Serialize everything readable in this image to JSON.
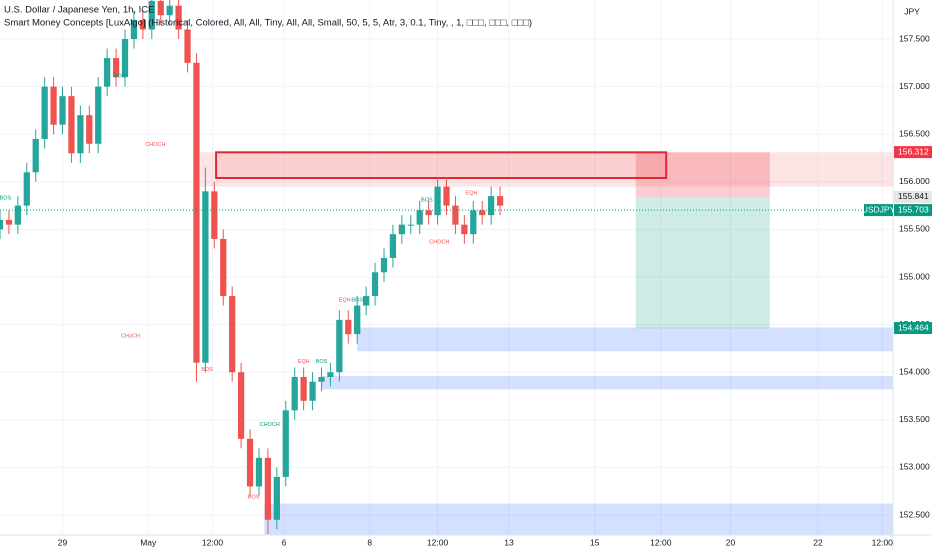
{
  "header": {
    "title": "U.S. Dollar / Japanese Yen, 1h, ICE",
    "indicator": "Smart Money Concepts [LuxAlgo] (Historical, Colored, All, All, Tiny, All, All, Small, 50, 5, 5, Atr, 3, 0.1, Tiny, , 1, □□□, □□□, □□□)",
    "currency": "JPY"
  },
  "chart_data": {
    "type": "candlestick",
    "up_color": "#26a69a",
    "down_color": "#ef5350",
    "x": [
      0,
      5,
      10,
      15,
      20,
      25,
      30,
      35,
      40,
      45,
      50,
      55,
      60,
      65,
      70,
      75,
      80,
      85,
      90,
      95,
      100,
      105,
      110,
      115,
      120,
      125,
      130,
      135,
      140,
      145,
      150,
      155,
      160,
      165,
      170,
      175,
      180,
      185,
      190,
      195,
      200,
      205,
      210,
      215,
      220,
      225,
      230,
      235,
      240,
      245,
      250,
      255,
      260,
      265,
      270,
      275,
      280
    ],
    "open": [
      155.5,
      155.6,
      155.55,
      155.75,
      156.1,
      156.45,
      157.0,
      156.6,
      156.9,
      156.3,
      156.7,
      156.4,
      157.0,
      157.3,
      157.1,
      157.5,
      157.7,
      157.6,
      157.9,
      157.75,
      157.85,
      157.6,
      157.25,
      154.1,
      155.9,
      155.4,
      154.8,
      154.0,
      153.3,
      152.8,
      153.1,
      152.45,
      152.9,
      153.6,
      153.95,
      153.7,
      153.9,
      153.95,
      154.0,
      154.55,
      154.4,
      154.7,
      154.8,
      155.05,
      155.2,
      155.45,
      155.55,
      155.55,
      155.7,
      155.65,
      155.95,
      155.75,
      155.55,
      155.45,
      155.7,
      155.65,
      155.85
    ],
    "high": [
      155.7,
      155.7,
      155.85,
      156.2,
      156.55,
      157.1,
      157.1,
      157.0,
      157.0,
      156.8,
      156.8,
      157.1,
      157.4,
      157.4,
      157.6,
      157.8,
      157.8,
      158.0,
      158.0,
      157.95,
      157.95,
      157.7,
      157.35,
      156.15,
      156.0,
      155.5,
      154.9,
      154.1,
      153.4,
      153.2,
      153.2,
      153.0,
      153.7,
      154.05,
      154.05,
      154.0,
      154.05,
      154.1,
      154.65,
      154.65,
      154.8,
      154.9,
      155.15,
      155.3,
      155.55,
      155.65,
      155.65,
      155.8,
      155.8,
      156.05,
      156.05,
      155.85,
      155.65,
      155.8,
      155.8,
      155.95,
      155.95
    ],
    "low": [
      155.4,
      155.45,
      155.45,
      155.65,
      156.0,
      156.35,
      156.5,
      156.5,
      156.2,
      156.2,
      156.3,
      156.3,
      156.9,
      157.0,
      157.0,
      157.4,
      157.5,
      157.5,
      157.65,
      157.65,
      157.5,
      157.15,
      153.9,
      154.0,
      155.3,
      154.7,
      153.9,
      153.2,
      152.7,
      152.7,
      152.3,
      152.35,
      152.8,
      153.5,
      153.6,
      153.6,
      153.8,
      153.85,
      153.9,
      154.3,
      154.3,
      154.6,
      154.7,
      154.95,
      155.1,
      155.35,
      155.45,
      155.45,
      155.55,
      155.55,
      155.65,
      155.45,
      155.35,
      155.35,
      155.55,
      155.55,
      155.65
    ],
    "close": [
      155.6,
      155.55,
      155.75,
      156.1,
      156.45,
      157.0,
      156.6,
      156.9,
      156.3,
      156.7,
      156.4,
      157.0,
      157.3,
      157.1,
      157.5,
      157.7,
      157.6,
      157.9,
      157.75,
      157.85,
      157.6,
      157.25,
      154.1,
      155.9,
      155.4,
      154.8,
      154.0,
      153.3,
      152.8,
      153.1,
      152.45,
      152.9,
      153.6,
      153.95,
      153.7,
      153.9,
      153.95,
      154.0,
      154.55,
      154.4,
      154.7,
      154.8,
      155.05,
      155.2,
      155.45,
      155.55,
      155.55,
      155.7,
      155.65,
      155.95,
      155.75,
      155.55,
      155.45,
      155.7,
      155.65,
      155.85,
      155.75
    ],
    "xlim": [
      0,
      500
    ],
    "ylim": [
      152.29,
      157.91
    ],
    "xticks": [
      {
        "value": 35,
        "label": "29"
      },
      {
        "value": 83,
        "label": "May"
      },
      {
        "value": 119,
        "label": "12:00"
      },
      {
        "value": 159,
        "label": "6"
      },
      {
        "value": 207,
        "label": "8"
      },
      {
        "value": 245,
        "label": "12:00"
      },
      {
        "value": 285,
        "label": "13"
      },
      {
        "value": 333,
        "label": "15"
      },
      {
        "value": 370,
        "label": "12:00"
      },
      {
        "value": 409,
        "label": "20"
      },
      {
        "value": 458,
        "label": "22"
      },
      {
        "value": 494,
        "label": "12:00"
      }
    ],
    "yticks": [
      {
        "value": 152.5,
        "label": "152.500"
      },
      {
        "value": 153.0,
        "label": "153.000"
      },
      {
        "value": 153.5,
        "label": "153.500"
      },
      {
        "value": 154.0,
        "label": "154.000"
      },
      {
        "value": 154.5,
        "label": "154.500"
      },
      {
        "value": 155.0,
        "label": "155.000"
      },
      {
        "value": 155.5,
        "label": "155.500"
      },
      {
        "value": 156.0,
        "label": "156.000"
      },
      {
        "value": 156.5,
        "label": "156.500"
      },
      {
        "value": 157.0,
        "label": "157.000"
      },
      {
        "value": 157.5,
        "label": "157.500"
      }
    ],
    "grid": true,
    "zones": [
      {
        "x": [
          112,
          500
        ],
        "price": [
          155.95,
          156.31
        ],
        "color": "rgba(239,83,80,0.15)"
      },
      {
        "x": [
          200,
          500
        ],
        "price": [
          154.22,
          154.47
        ],
        "color": "rgba(41,98,255,0.2)"
      },
      {
        "x": [
          180,
          500
        ],
        "price": [
          153.82,
          153.96
        ],
        "color": "rgba(41,98,255,0.2)"
      },
      {
        "x": [
          148,
          500
        ],
        "price": [
          152.29,
          152.62
        ],
        "color": "rgba(41,98,255,0.2)"
      },
      {
        "x": [
          356,
          431
        ],
        "price": [
          155.84,
          156.31
        ],
        "color": "rgba(242,54,69,0.25)"
      },
      {
        "x": [
          356,
          431
        ],
        "price": [
          154.46,
          155.84
        ],
        "color": "rgba(8,153,129,0.2)"
      },
      {
        "x": [
          121,
          373
        ],
        "price": [
          156.04,
          156.31
        ],
        "color": "rgba(242,54,69,0.12)",
        "stroke": "#e0262f"
      }
    ],
    "annotations": [
      {
        "text": "CHoCH",
        "x": 73,
        "price": 154.38,
        "color": "#ef5350"
      },
      {
        "text": "CHOCH",
        "x": 87,
        "price": 156.39,
        "color": "#ef5350"
      },
      {
        "text": "BOS",
        "x": 67,
        "price": 157.11,
        "color": "#089981"
      },
      {
        "text": "BOS",
        "x": 3,
        "price": 155.83,
        "color": "#089981"
      },
      {
        "text": "BOS",
        "x": 116,
        "price": 154.03,
        "color": "#ef5350"
      },
      {
        "text": "BOS",
        "x": 142,
        "price": 152.69,
        "color": "#ef5350"
      },
      {
        "text": "CHOCH",
        "x": 151,
        "price": 153.45,
        "color": "#089981"
      },
      {
        "text": "EQH",
        "x": 170,
        "price": 154.11,
        "color": "#ef5350"
      },
      {
        "text": "BOS",
        "x": 180,
        "price": 154.11,
        "color": "#089981"
      },
      {
        "text": "EQH",
        "x": 193,
        "price": 154.76,
        "color": "#ef5350"
      },
      {
        "text": "BOS",
        "x": 200,
        "price": 154.76,
        "color": "#089981"
      },
      {
        "text": "BOS",
        "x": 239,
        "price": 155.81,
        "color": "#089981"
      },
      {
        "text": "CHOCH",
        "x": 246,
        "price": 155.37,
        "color": "#ef5350"
      },
      {
        "text": "EQH",
        "x": 264,
        "price": 155.88,
        "color": "#ef5350"
      }
    ],
    "price_labels": [
      {
        "value": 156.312,
        "color": "#f23645"
      },
      {
        "value": 155.841,
        "color": "#e6e6e6"
      },
      {
        "value": 155.703,
        "name": "USDJPY",
        "color": "#089981"
      },
      {
        "value": 154.464,
        "color": "#089981"
      }
    ]
  }
}
